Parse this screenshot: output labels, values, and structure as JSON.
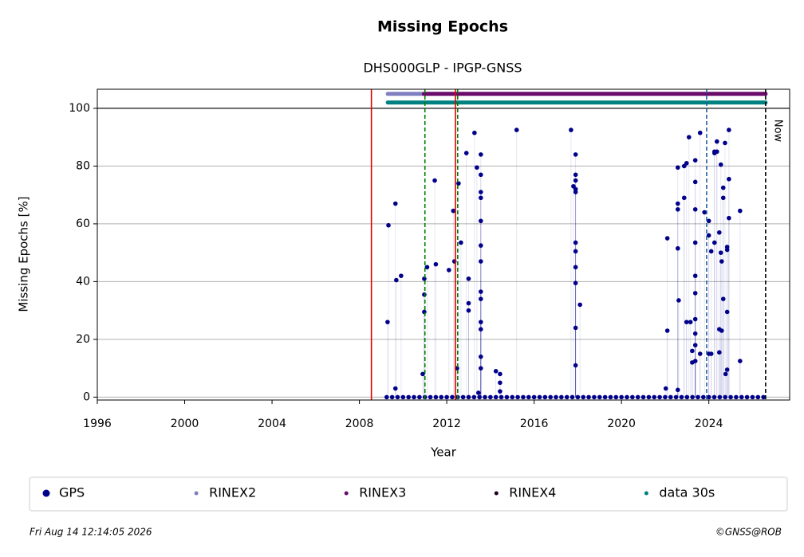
{
  "chart_data": {
    "type": "scatter",
    "title": "Missing Epochs",
    "subtitle": "DHS000GLP - IPGP-GNSS",
    "x_label": "Year",
    "y_label": "Missing Epochs [%]",
    "xlim": [
      1996,
      2027.7
    ],
    "ylim": [
      -1,
      106.6
    ],
    "xticks": [
      1996,
      2000,
      2004,
      2008,
      2012,
      2016,
      2020,
      2024
    ],
    "yticks": [
      0,
      20,
      40,
      60,
      80,
      100
    ],
    "grid": true,
    "hlines": [
      100
    ],
    "legend": "bottom",
    "series": [
      {
        "name": "GPS",
        "color": "#00008b",
        "x": [
          2009.29,
          2009.33,
          2009.65,
          2009.65,
          2009.69,
          2009.91,
          2010.9,
          2010.97,
          2010.97,
          2010.97,
          2011.1,
          2011.45,
          2011.5,
          2012.1,
          2012.3,
          2012.35,
          2012.47,
          2012.54,
          2012.65,
          2012.9,
          2013.0,
          2013.0,
          2013.0,
          2013.27,
          2013.38,
          2013.45,
          2013.56,
          2013.56,
          2013.56,
          2013.56,
          2013.56,
          2013.56,
          2013.56,
          2013.56,
          2013.56,
          2013.56,
          2013.56,
          2013.56,
          2013.56,
          2014.25,
          2014.44,
          2014.44,
          2014.44,
          2015.2,
          2017.69,
          2017.8,
          2017.9,
          2017.9,
          2017.9,
          2017.9,
          2017.9,
          2017.9,
          2017.9,
          2017.9,
          2017.9,
          2017.9,
          2017.9,
          2018.1,
          2022.03,
          2022.1,
          2022.1,
          2022.58,
          2022.58,
          2022.58,
          2022.58,
          2022.58,
          2022.62,
          2022.87,
          2022.87,
          2022.98,
          2022.98,
          2023.09,
          2023.16,
          2023.24,
          2023.24,
          2023.38,
          2023.38,
          2023.38,
          2023.38,
          2023.38,
          2023.38,
          2023.38,
          2023.38,
          2023.38,
          2023.38,
          2023.6,
          2023.6,
          2023.8,
          2024.0,
          2024.0,
          2024.0,
          2024.11,
          2024.11,
          2024.26,
          2024.26,
          2024.26,
          2024.37,
          2024.37,
          2024.48,
          2024.48,
          2024.48,
          2024.55,
          2024.55,
          2024.59,
          2024.59,
          2024.66,
          2024.66,
          2024.66,
          2024.74,
          2024.77,
          2024.84,
          2024.84,
          2024.84,
          2024.84,
          2024.92,
          2024.92,
          2024.92,
          2025.43,
          2025.43,
          2009.25,
          2009.5,
          2009.75,
          2010,
          2010.25,
          2010.5,
          2010.75,
          2011,
          2011.25,
          2011.5,
          2011.75,
          2012,
          2012.25,
          2012.5,
          2012.75,
          2013,
          2013.25,
          2013.5,
          2013.75,
          2014,
          2014.25,
          2014.5,
          2014.75,
          2015,
          2015.25,
          2015.5,
          2015.75,
          2016,
          2016.25,
          2016.5,
          2016.75,
          2017,
          2017.25,
          2017.5,
          2017.75,
          2018,
          2018.25,
          2018.5,
          2018.75,
          2019,
          2019.25,
          2019.5,
          2019.75,
          2020,
          2020.25,
          2020.5,
          2020.75,
          2021,
          2021.25,
          2021.5,
          2021.75,
          2022,
          2022.25,
          2022.5,
          2022.75,
          2023,
          2023.25,
          2023.5,
          2023.75,
          2024,
          2024.25,
          2024.5,
          2024.75,
          2025,
          2025.25,
          2025.5,
          2025.75,
          2026,
          2026.25,
          2026.5
        ],
        "values": [
          26,
          59.5,
          67,
          3,
          40.5,
          42,
          8,
          29.5,
          35.5,
          41,
          45,
          75,
          46,
          44,
          64.5,
          47,
          10,
          74,
          53.5,
          84.5,
          41,
          30,
          32.5,
          91.5,
          79.5,
          1.5,
          77,
          84,
          71,
          69,
          61,
          52.5,
          47,
          36.5,
          34,
          26,
          23.5,
          14,
          10,
          9,
          2,
          5,
          8,
          92.5,
          92.5,
          73,
          39.5,
          45,
          50.5,
          53.5,
          72,
          75,
          77,
          84,
          71,
          24,
          11,
          32,
          3,
          55,
          23,
          2.5,
          51.5,
          65,
          67,
          79.5,
          33.5,
          80,
          69,
          26,
          81,
          90,
          26,
          12,
          16,
          12.5,
          18,
          22,
          27,
          36,
          42,
          53.5,
          65,
          74.5,
          82,
          15,
          91.5,
          64,
          56,
          61,
          15,
          50.5,
          15,
          53.5,
          84.5,
          85,
          88.5,
          85,
          15.5,
          23.5,
          57,
          80.5,
          50,
          47,
          23,
          34,
          69,
          72.5,
          88,
          8,
          9.5,
          29.5,
          51,
          52,
          92.5,
          75.5,
          62,
          12.5,
          64.5,
          0,
          0,
          0,
          0,
          0,
          0,
          0,
          0,
          0,
          0,
          0,
          0,
          0,
          0,
          0,
          0,
          0,
          0,
          0,
          0,
          0,
          0,
          0,
          0,
          0,
          0,
          0,
          0,
          0,
          0,
          0,
          0,
          0,
          0,
          0,
          0,
          0,
          0,
          0,
          0,
          0,
          0,
          0,
          0,
          0,
          0,
          0,
          0,
          0,
          0,
          0,
          0,
          0,
          0,
          0,
          0,
          0,
          0,
          0,
          0,
          0,
          0,
          0,
          0,
          0,
          0,
          0,
          0,
          0,
          0
        ]
      },
      {
        "name": "RINEX2",
        "color": "#8080c0",
        "y": 105,
        "periods": [
          [
            2009.3,
            2010.85
          ]
        ]
      },
      {
        "name": "RINEX3",
        "color": "#6a0a6a",
        "y": 105,
        "periods": [
          [
            2010.95,
            2023.85
          ],
          [
            2023.95,
            2026.6
          ]
        ]
      },
      {
        "name": "RINEX4",
        "color": "#200020",
        "y": 105,
        "periods": []
      },
      {
        "name": "data 30s",
        "color": "#008080",
        "y": 102,
        "periods": [
          [
            2009.3,
            2023.85
          ],
          [
            2023.95,
            2026.6
          ]
        ]
      }
    ],
    "events": [
      {
        "x": 2008.55,
        "color": "#e00000",
        "style": "solid"
      },
      {
        "x": 2011.0,
        "color": "#008000",
        "style": "dashed"
      },
      {
        "x": 2012.4,
        "color": "#e00000",
        "style": "solid"
      },
      {
        "x": 2012.5,
        "color": "#008000",
        "style": "dashed"
      },
      {
        "x": 2023.9,
        "color": "#1f5fa0",
        "style": "dashed"
      },
      {
        "x": 2026.6,
        "color": "#000000",
        "style": "dashed",
        "label": "Now"
      }
    ],
    "footer_left": "Fri Aug 14 12:14:05 2026",
    "footer_right": "©GNSS@ROB"
  }
}
